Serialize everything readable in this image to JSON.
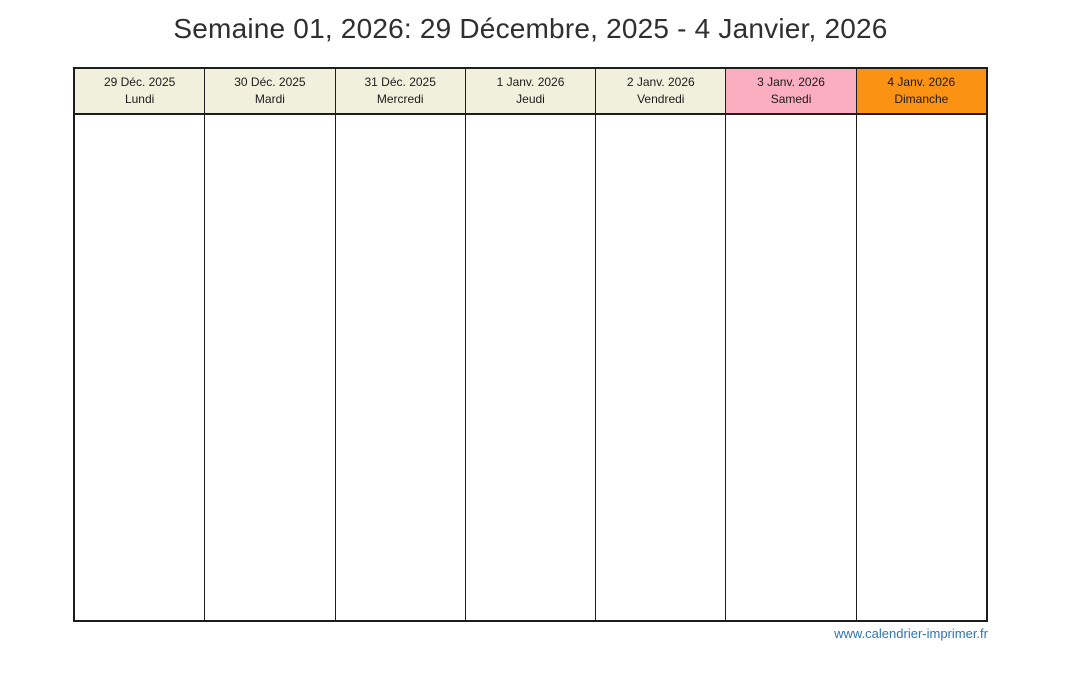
{
  "page": {
    "title": "Semaine 01, 2026: 29 Décembre, 2025 - 4 Janvier, 2026"
  },
  "calendar": {
    "days": [
      {
        "date": "29 Déc. 2025",
        "name": "Lundi",
        "type": "weekday"
      },
      {
        "date": "30 Déc. 2025",
        "name": "Mardi",
        "type": "weekday"
      },
      {
        "date": "31 Déc. 2025",
        "name": "Mercredi",
        "type": "weekday"
      },
      {
        "date": "1 Janv. 2026",
        "name": "Jeudi",
        "type": "weekday"
      },
      {
        "date": "2 Janv. 2026",
        "name": "Vendredi",
        "type": "weekday"
      },
      {
        "date": "3 Janv. 2026",
        "name": "Samedi",
        "type": "saturday"
      },
      {
        "date": "4 Janv. 2026",
        "name": "Dimanche",
        "type": "sunday"
      }
    ]
  },
  "footer": {
    "website": "www.calendrier-imprimer.fr"
  },
  "colors": {
    "weekday_header": "#f1f0dc",
    "saturday_header": "#fbaec0",
    "sunday_header": "#fb9214",
    "link": "#2e74b5",
    "border": "#1d1d1d"
  }
}
